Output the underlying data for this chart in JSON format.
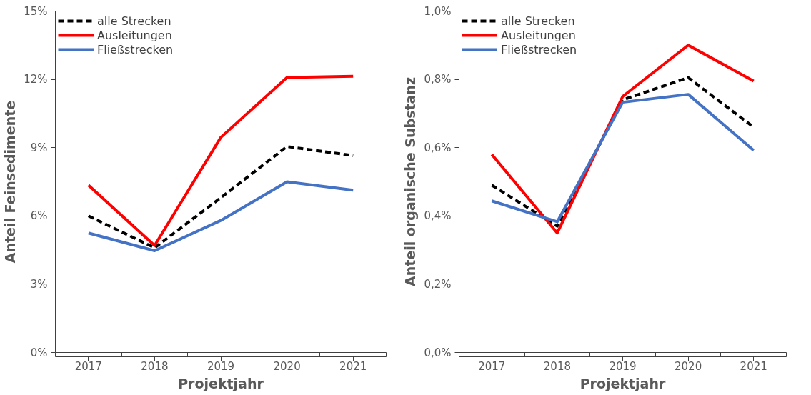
{
  "chart_data": [
    {
      "type": "line",
      "xlabel": "Projektjahr",
      "ylabel": "Anteil Feinsedimente",
      "categories": [
        "2017",
        "2018",
        "2019",
        "2020",
        "2021"
      ],
      "ylim": [
        0,
        15
      ],
      "yticks": [
        {
          "value": 0,
          "label": "0%"
        },
        {
          "value": 3,
          "label": "3%"
        },
        {
          "value": 6,
          "label": "6%"
        },
        {
          "value": 9,
          "label": "9%"
        },
        {
          "value": 12,
          "label": "12%"
        },
        {
          "value": 15,
          "label": "15%"
        }
      ],
      "grid": false,
      "legend": "top left",
      "marker": "none",
      "series": [
        {
          "name": "alle Strecken",
          "color": "#000000",
          "line_style": "dashed",
          "values": [
            6.0,
            4.6,
            6.8,
            9.05,
            8.65
          ]
        },
        {
          "name": "Ausleitungen",
          "color": "#ff0000",
          "line_style": "solid",
          "values": [
            7.35,
            4.7,
            9.45,
            12.08,
            12.14
          ]
        },
        {
          "name": "Fließstrecken",
          "color": "#4472c4",
          "line_style": "solid",
          "values": [
            5.25,
            4.47,
            5.8,
            7.5,
            7.13
          ]
        }
      ]
    },
    {
      "type": "line",
      "xlabel": "Projektjahr",
      "ylabel": "Anteil organische Substanz",
      "categories": [
        "2017",
        "2018",
        "2019",
        "2020",
        "2021"
      ],
      "ylim": [
        0,
        1
      ],
      "yticks": [
        {
          "value": 0,
          "label": "0,0%"
        },
        {
          "value": 0.2,
          "label": "0,2%"
        },
        {
          "value": 0.4,
          "label": "0,4%"
        },
        {
          "value": 0.6,
          "label": "0,6%"
        },
        {
          "value": 0.8,
          "label": "0,8%"
        },
        {
          "value": 1,
          "label": "1,0%"
        }
      ],
      "grid": false,
      "legend": "top left",
      "marker": "none",
      "series": [
        {
          "name": "alle Strecken",
          "color": "#000000",
          "line_style": "dashed",
          "values": [
            0.49,
            0.37,
            0.74,
            0.805,
            0.66
          ]
        },
        {
          "name": "Ausleitungen",
          "color": "#ff0000",
          "line_style": "solid",
          "values": [
            0.58,
            0.35,
            0.75,
            0.9,
            0.795
          ]
        },
        {
          "name": "Fließstrecken",
          "color": "#4472c4",
          "line_style": "solid",
          "values": [
            0.444,
            0.383,
            0.733,
            0.756,
            0.592
          ]
        }
      ]
    }
  ]
}
